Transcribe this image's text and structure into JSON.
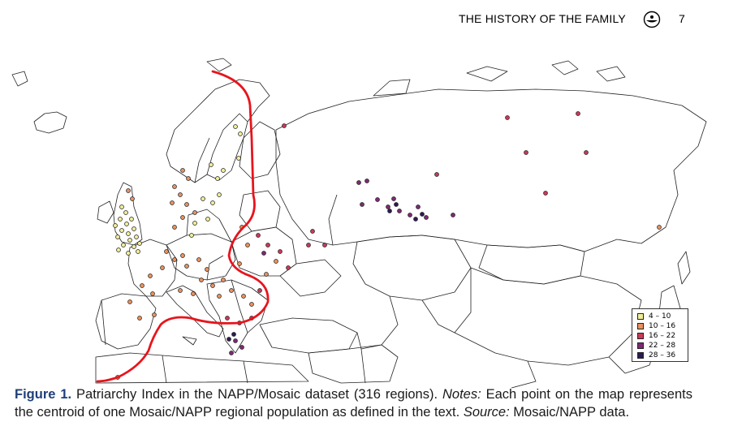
{
  "header": {
    "running_title": "THE HISTORY OF  THE FAMILY",
    "page_number": "7",
    "logo_icon": "journal-logo-icon"
  },
  "legend": {
    "items": [
      {
        "label": "4 – 10",
        "color": "#f1ed9a"
      },
      {
        "label": "10 – 16",
        "color": "#e9915f"
      },
      {
        "label": "16 – 22",
        "color": "#c93a59"
      },
      {
        "label": "22 – 28",
        "color": "#7e2a73"
      },
      {
        "label": "28 – 36",
        "color": "#2e1a52"
      }
    ]
  },
  "figure": {
    "boundary_line_color": "#e8141c",
    "caption_label": "Figure 1.",
    "caption_main": " Patriarchy Index in the NAPP/Mosaic dataset (316 regions). ",
    "notes_label": "Notes:",
    "notes_text": " Each point on the map represents the centroid of one Mosaic/NAPP regional population as defined in the text. ",
    "source_label": "Source:",
    "source_text": " Mosaic/NAPP data."
  }
}
